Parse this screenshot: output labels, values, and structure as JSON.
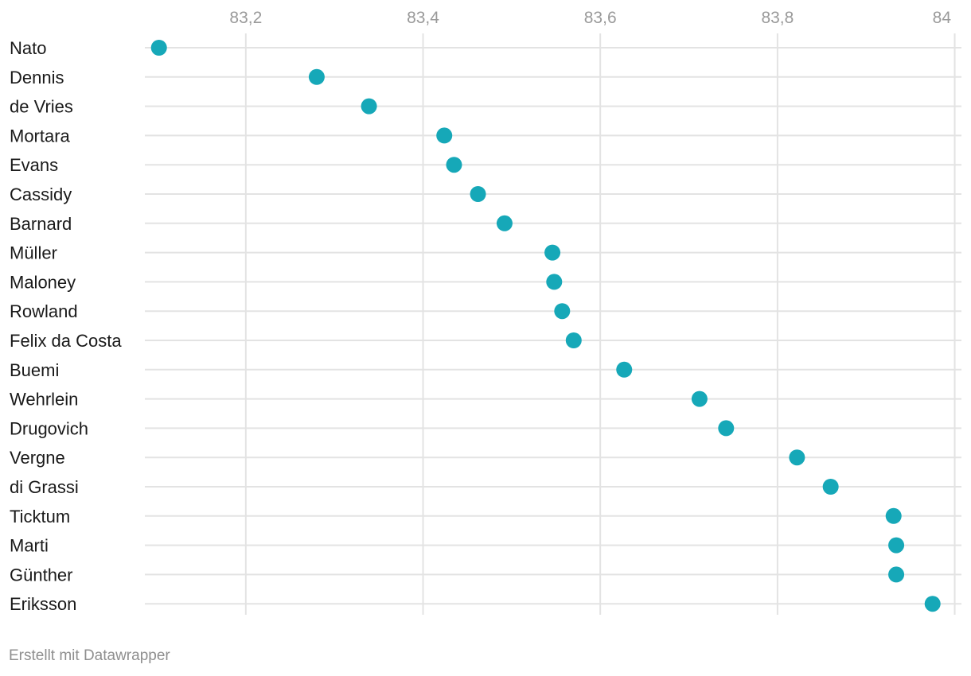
{
  "chart_data": {
    "type": "scatter",
    "title": "",
    "xlabel": "",
    "ylabel": "",
    "xlim": [
      83.09,
      84.02
    ],
    "xticks": [
      83.2,
      83.4,
      83.6,
      83.8,
      84.0
    ],
    "xtick_labels": [
      "83,2",
      "83,4",
      "83,6",
      "83,8",
      "84"
    ],
    "grid": true,
    "dot_color": "#16a8b8",
    "categories": [
      "Nato",
      "Dennis",
      "de Vries",
      "Mortara",
      "Evans",
      "Cassidy",
      "Barnard",
      "Müller",
      "Maloney",
      "Rowland",
      "Felix da Costa",
      "Buemi",
      "Wehrlein",
      "Drugovich",
      "Vergne",
      "di Grassi",
      "Ticktum",
      "Marti",
      "Günther",
      "Eriksson"
    ],
    "values": [
      83.102,
      83.28,
      83.339,
      83.424,
      83.435,
      83.462,
      83.492,
      83.546,
      83.548,
      83.557,
      83.57,
      83.627,
      83.712,
      83.742,
      83.822,
      83.86,
      83.931,
      83.934,
      83.934,
      83.975
    ]
  },
  "footer": {
    "credit": "Erstellt mit Datawrapper"
  }
}
